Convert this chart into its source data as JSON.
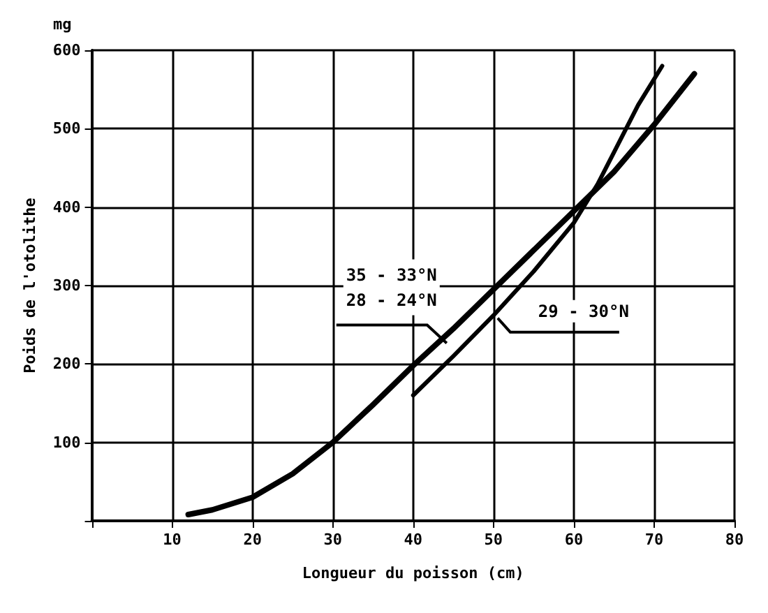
{
  "chart_data": {
    "type": "line",
    "xlabel": "Longueur du poisson (cm)",
    "ylabel": "Poids de l'otolithe",
    "annotations": [
      "mg"
    ],
    "xlim": [
      0,
      80
    ],
    "xticks": [
      {
        "value": 0,
        "label": null
      },
      10,
      20,
      30,
      40,
      50,
      60,
      70,
      80
    ],
    "ylim": [
      0,
      600
    ],
    "yticks": [
      {
        "value": 0,
        "label": null
      },
      100,
      200,
      300,
      400,
      500,
      600
    ],
    "grid": true,
    "marker": "none",
    "line_style": "solid",
    "series": [
      {
        "name": "35 - 33°N\n28 - 24°N",
        "color": "#000000",
        "x": [
          12,
          15,
          20,
          25,
          30,
          35,
          40,
          45,
          50,
          55,
          60,
          65,
          70,
          75
        ],
        "values": [
          8,
          14,
          30,
          60,
          100,
          148,
          198,
          245,
          295,
          345,
          395,
          445,
          505,
          570
        ]
      },
      {
        "name": "29 - 30°N",
        "color": "#000000",
        "x": [
          40,
          45,
          50,
          55,
          60,
          63,
          65,
          68,
          71
        ],
        "values": [
          160,
          210,
          262,
          318,
          380,
          430,
          470,
          530,
          580
        ]
      }
    ]
  }
}
